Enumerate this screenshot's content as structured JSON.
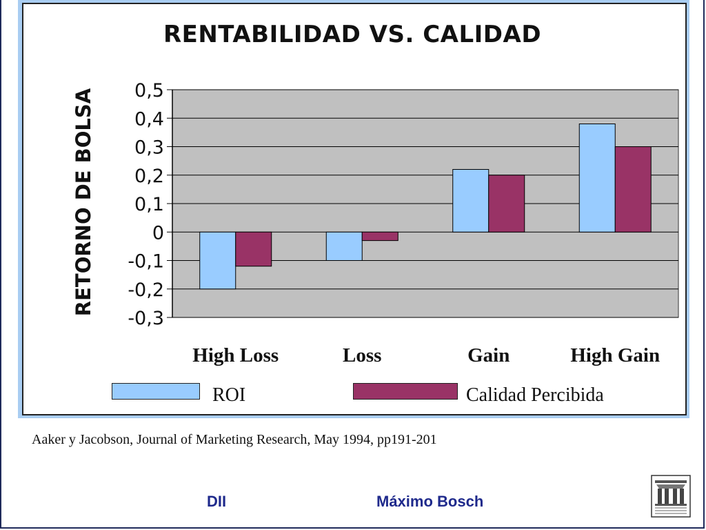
{
  "source": "Aaker y Jacobson, Journal of Marketing Research, May 1994, pp191-201",
  "footer": {
    "left": "DII",
    "right": "Máximo Bosch"
  },
  "colors": {
    "roi": "#99ccff",
    "calidad": "#993366",
    "plot_bg": "#c0c0c0",
    "panel": "#a9cdf2"
  },
  "chart_data": {
    "type": "bar",
    "title": "RENTABILIDAD VS. CALIDAD",
    "xlabel": "",
    "ylabel": "RETORNO DE BOLSA",
    "categories": [
      "High Loss",
      "Loss",
      "Gain",
      "High Gain"
    ],
    "series": [
      {
        "name": "ROI",
        "values": [
          -0.2,
          -0.1,
          0.22,
          0.38
        ]
      },
      {
        "name": "Calidad Percibida",
        "values": [
          -0.12,
          -0.03,
          0.2,
          0.3
        ]
      }
    ],
    "ylim": [
      -0.3,
      0.5
    ],
    "yticks": [
      "0,5",
      "0,4",
      "0,3",
      "0,2",
      "0,1",
      "0",
      "-0,1",
      "-0,2",
      "-0,3"
    ],
    "grid": true,
    "legend_position": "bottom"
  }
}
